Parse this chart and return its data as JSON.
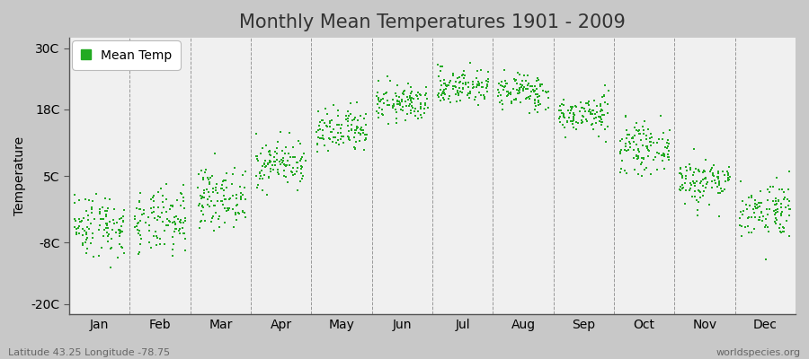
{
  "title": "Monthly Mean Temperatures 1901 - 2009",
  "ylabel": "Temperature",
  "xlabel_labels": [
    "Jan",
    "Feb",
    "Mar",
    "Apr",
    "May",
    "Jun",
    "Jul",
    "Aug",
    "Sep",
    "Oct",
    "Nov",
    "Dec"
  ],
  "ytick_labels": [
    "-20C",
    "-8C",
    "5C",
    "18C",
    "30C"
  ],
  "ytick_values": [
    -20,
    -8,
    5,
    18,
    30
  ],
  "ylim": [
    -22,
    32
  ],
  "legend_label": "Mean Temp",
  "dot_color": "#22aa22",
  "dot_size": 3,
  "plot_bg_color": "#f0f0f0",
  "fig_bg_color": "#c8c8c8",
  "dashed_line_color": "#999999",
  "spine_color": "#555555",
  "footer_left": "Latitude 43.25 Longitude -78.75",
  "footer_right": "worldspecies.org",
  "title_fontsize": 15,
  "axis_fontsize": 10,
  "footer_fontsize": 8,
  "monthly_means": [
    -4.5,
    -4.2,
    0.8,
    7.5,
    13.5,
    19.2,
    22.5,
    21.5,
    17.0,
    10.5,
    4.0,
    -1.5
  ],
  "monthly_stds": [
    3.2,
    3.2,
    2.8,
    2.3,
    2.3,
    1.8,
    1.8,
    1.8,
    1.8,
    2.3,
    2.3,
    2.8
  ],
  "n_years": 109,
  "seed": 42
}
